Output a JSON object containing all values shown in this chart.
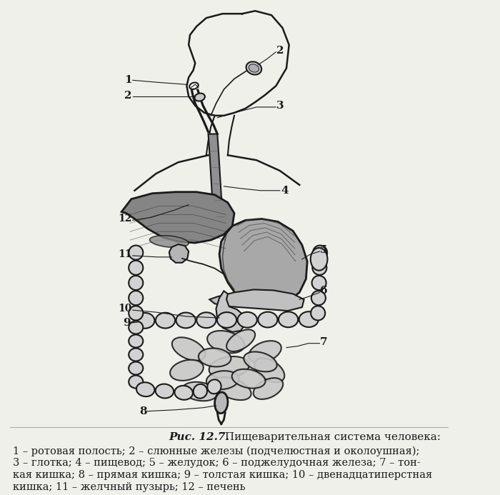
{
  "bg_color": "#f0f0eb",
  "title_italic": "Рис. 12.7.",
  "title_normal": " Пищеварительная система человека:",
  "caption_lines": [
    "1 – ротовая полость; 2 – слюнные железы (подчелюстная и околоушная);",
    "3 – глотка; 4 – пищевод; 5 – желудок; 6 – поджелудочная железа; 7 – тон-",
    "кая кишка; 8 – прямая кишка; 9 – толстая кишка; 10 – двенадцатиперстная",
    "кишка; 11 – желчный пузырь; 12 – печень"
  ],
  "draw_color": "#1a1a1a",
  "line_width": 1.5,
  "figsize": [
    7.0,
    6.93
  ],
  "dpi": 100
}
